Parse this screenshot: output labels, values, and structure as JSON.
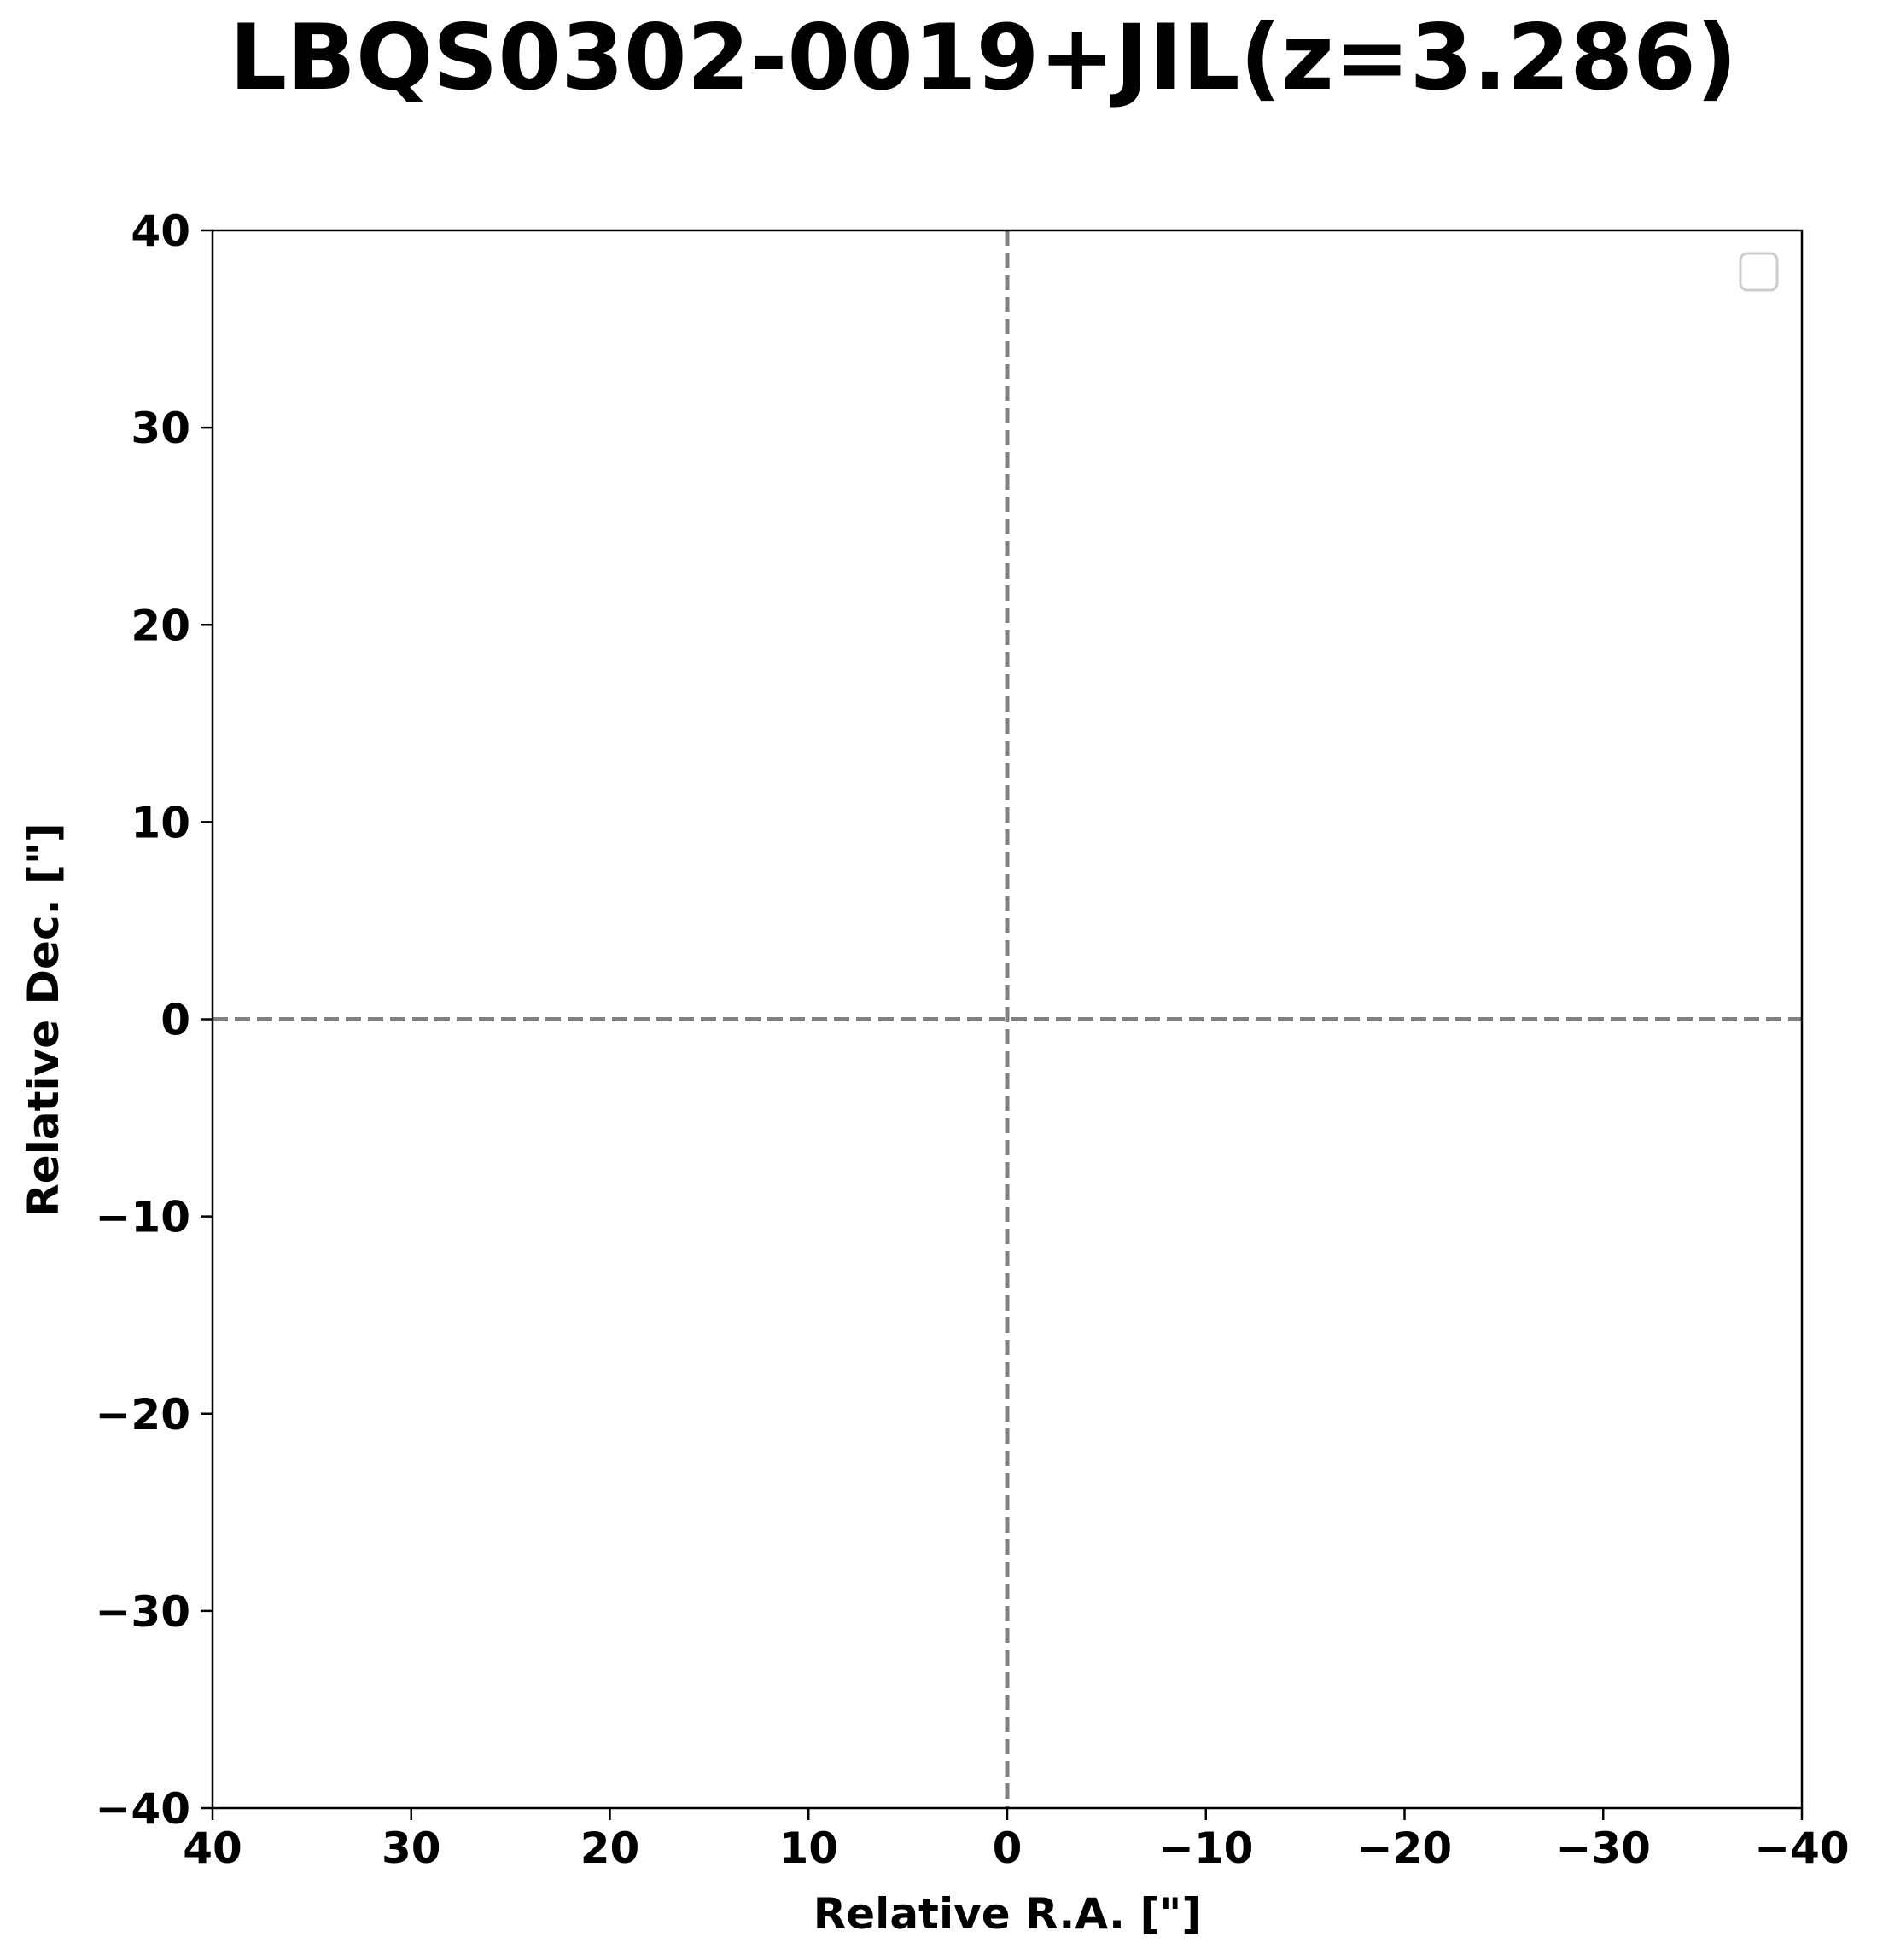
{
  "chart_data": {
    "type": "scatter",
    "title": "LBQS0302-0019+JIL(z=3.286)",
    "xlabel": "Relative R.A. [\"]",
    "ylabel": "Relative Dec. [\"]",
    "xlim": [
      40,
      -40
    ],
    "ylim": [
      -40,
      40
    ],
    "x_inverted": true,
    "xticks": [
      40,
      30,
      20,
      10,
      0,
      -10,
      -20,
      -30,
      -40
    ],
    "yticks": [
      40,
      30,
      20,
      10,
      0,
      -10,
      -20,
      -30,
      -40
    ],
    "xtick_labels": [
      "40",
      "30",
      "20",
      "10",
      "0",
      "−10",
      "−20",
      "−30",
      "−40"
    ],
    "ytick_labels": [
      "40",
      "30",
      "20",
      "10",
      "0",
      "−10",
      "−20",
      "−30",
      "−40"
    ],
    "reference_lines": [
      {
        "orientation": "vertical",
        "value": 0,
        "style": "dashed",
        "color": "#808080"
      },
      {
        "orientation": "horizontal",
        "value": 0,
        "style": "dashed",
        "color": "#808080"
      }
    ],
    "series": [],
    "grid": false,
    "legend": {
      "placement": "upper-right",
      "entries": []
    }
  }
}
